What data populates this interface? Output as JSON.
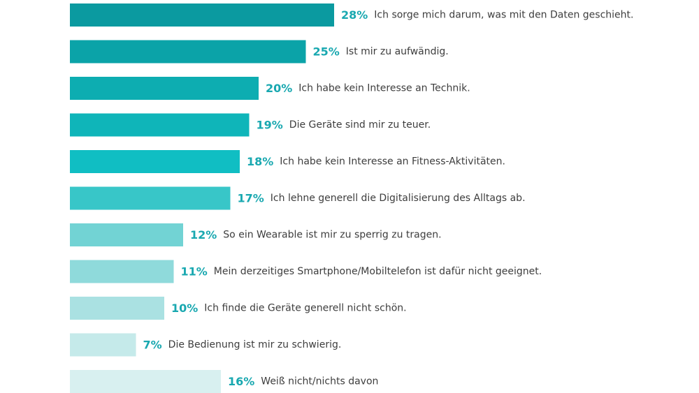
{
  "chart_data": {
    "type": "bar",
    "orientation": "horizontal",
    "unit": "%",
    "accent_color": "#19a8b0",
    "categories": [
      "Ich sorge mich darum, was mit den Daten geschieht.",
      "Ist mir zu aufwändig.",
      "Ich habe kein Interesse an Technik.",
      "Die Geräte sind mir zu teuer.",
      "Ich habe kein Interesse an Fitness-Aktivitäten.",
      "Ich lehne generell die Digitalisierung des Alltags ab.",
      "So ein Wearable ist mir zu sperrig zu tragen.",
      "Mein derzeitiges Smartphone/Mobiltelefon ist dafür nicht geeignet.",
      "Ich finde die Geräte generell nicht schön.",
      "Die Bedienung ist mir zu schwierig.",
      "Weiß nicht/nichts davon"
    ],
    "values": [
      28,
      25,
      20,
      19,
      18,
      17,
      12,
      11,
      10,
      7,
      16
    ],
    "value_labels": [
      "28%",
      "25%",
      "20%",
      "19%",
      "18%",
      "17%",
      "12%",
      "11%",
      "10%",
      "7%",
      "16%"
    ],
    "bar_colors": [
      "#0b9aa0",
      "#0ba3a8",
      "#0dadb1",
      "#0fb5b9",
      "#10bec3",
      "#38c6c8",
      "#72d3d4",
      "#8fdadb",
      "#aae1e2",
      "#c5eaea",
      "#d8f0f0"
    ]
  }
}
